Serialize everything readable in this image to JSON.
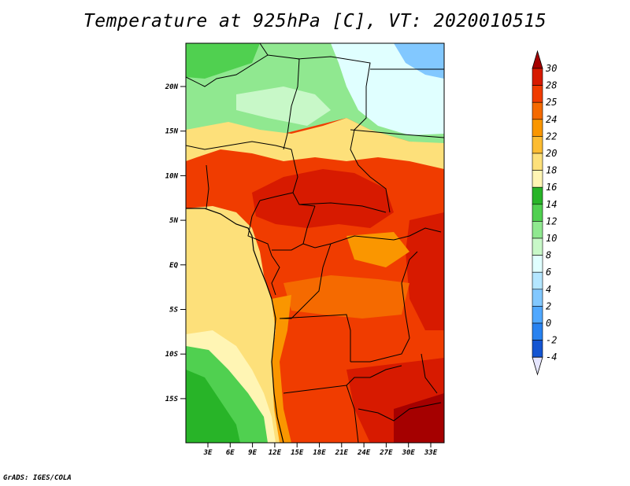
{
  "title": "Temperature at 925hPa [C], VT: 2020010515",
  "credit": "GrADS: IGES/COLA",
  "map": {
    "lat_labels": [
      "20N",
      "15N",
      "10N",
      "5N",
      "EQ",
      "5S",
      "10S",
      "15S"
    ],
    "lon_labels": [
      "3E",
      "6E",
      "9E",
      "12E",
      "15E",
      "18E",
      "21E",
      "24E",
      "27E",
      "30E",
      "33E"
    ]
  },
  "colorbar": {
    "labels": [
      "30",
      "28",
      "25",
      "24",
      "22",
      "20",
      "18",
      "16",
      "14",
      "12",
      "10",
      "8",
      "6",
      "4",
      "2",
      "0",
      "-2",
      "-4"
    ],
    "colors": [
      "#a50000",
      "#d71a00",
      "#f03c00",
      "#f56a00",
      "#fa9600",
      "#fcbc32",
      "#fde07a",
      "#fff5b4",
      "#28b428",
      "#50d050",
      "#90e890",
      "#c8f8c8",
      "#e0ffff",
      "#b4e6ff",
      "#82c8ff",
      "#50a8ff",
      "#2882f0",
      "#1455d2",
      "#0a1ea0"
    ]
  }
}
